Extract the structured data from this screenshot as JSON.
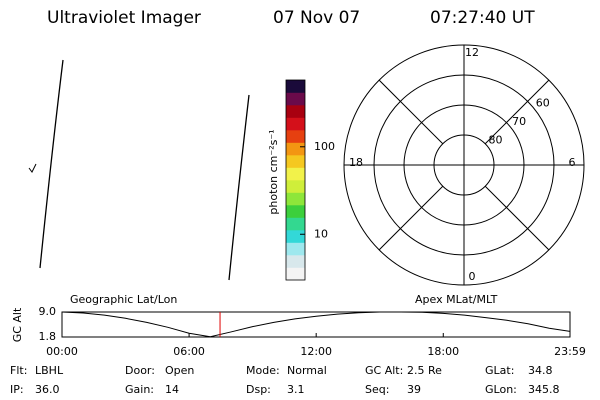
{
  "header": {
    "title": "Ultraviolet Imager",
    "date": "07 Nov 07",
    "time": "07:27:40 UT"
  },
  "chart_data": [
    {
      "type": "colorbar",
      "label": "photon cm⁻²s⁻¹",
      "log": true,
      "ylim": [
        3,
        580
      ],
      "yticks": [
        10,
        100
      ],
      "colors": [
        "#f4f4f4",
        "#d8e8ec",
        "#9ee8ee",
        "#33d8d8",
        "#33d890",
        "#3ccf3c",
        "#8ee63a",
        "#cfee3a",
        "#f2f24a",
        "#f5c820",
        "#f39612",
        "#e64010",
        "#d4101a",
        "#a80010",
        "#6a0a4a",
        "#1a0a3a"
      ]
    },
    {
      "type": "polar",
      "rlim": [
        90,
        50
      ],
      "rticks": [
        80,
        70,
        60
      ],
      "thetaticks": [
        0,
        6,
        12,
        18
      ],
      "color": "#000000"
    },
    {
      "type": "line",
      "title": "Geographic Lat/Lon",
      "subtitle": "Apex MLat/MLT",
      "y_label": "GC Alt",
      "x": [
        0,
        1,
        2,
        3,
        4,
        5,
        6,
        7,
        8,
        9,
        10,
        11,
        12,
        13,
        14,
        15,
        16,
        17,
        18,
        19,
        20,
        21,
        22,
        23,
        23.983
      ],
      "values": [
        9.0,
        8.7,
        8.1,
        7.2,
        6.0,
        4.6,
        2.9,
        1.9,
        3.3,
        4.8,
        6.0,
        7.0,
        7.8,
        8.4,
        8.8,
        9.0,
        9.0,
        8.9,
        8.6,
        8.1,
        7.4,
        6.6,
        5.6,
        4.3,
        3.4
      ],
      "color": "#000000",
      "current_time": 7.461,
      "current_color": "#e00000",
      "xlim": [
        0,
        23.983
      ],
      "ylim": [
        1.8,
        9.0
      ],
      "xticks": [
        {
          "value": 0,
          "label": "00:00"
        },
        {
          "value": 6,
          "label": "06:00"
        },
        {
          "value": 12,
          "label": "12:00"
        },
        {
          "value": 18,
          "label": "18:00"
        },
        {
          "value": 23.983,
          "label": "23:59"
        }
      ],
      "yticks": [
        1.8,
        {
          "value": 9.0,
          "label": "9.0"
        }
      ]
    }
  ],
  "footer": [
    [
      {
        "label": "Flt:",
        "value": "LBHL"
      },
      {
        "label": "Door:",
        "value": "Open"
      },
      {
        "label": "Mode:",
        "value": "Normal"
      },
      {
        "label": "GC Alt:",
        "value": "2.5 Re"
      },
      {
        "label": "GLat:",
        "value": "34.8"
      }
    ],
    [
      {
        "label": "IP:",
        "value": "36.0"
      },
      {
        "label": "Gain:",
        "value": "14"
      },
      {
        "label": "Dsp:",
        "value": "3.1"
      },
      {
        "label": "Seq:",
        "value": "39"
      },
      {
        "label": "GLon:",
        "value": "345.8"
      }
    ]
  ]
}
